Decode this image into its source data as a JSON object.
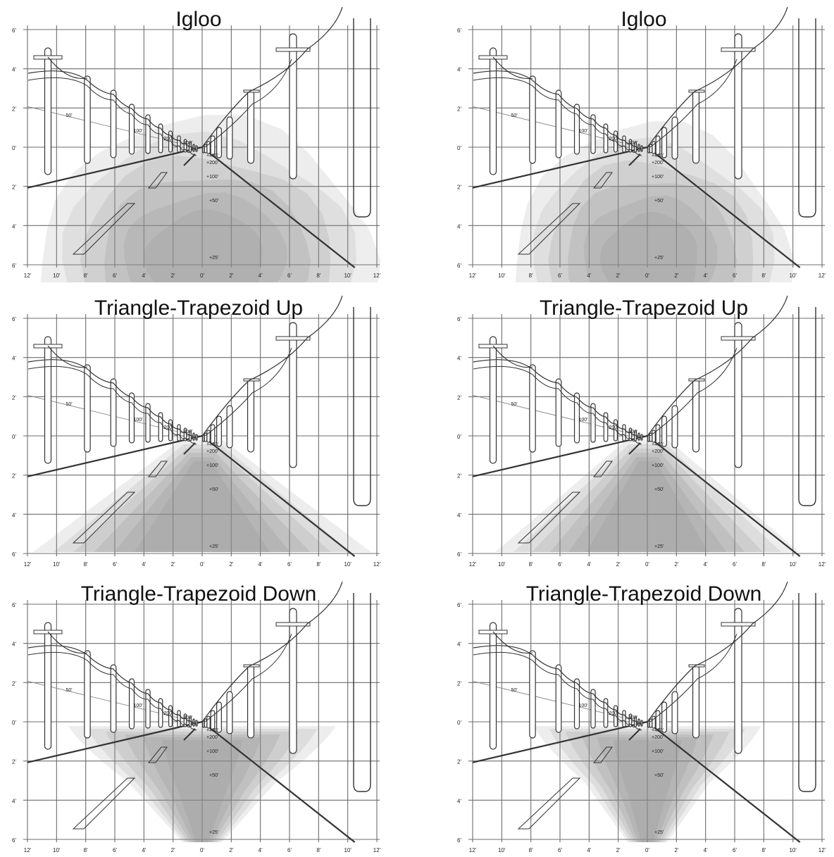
{
  "grid": {
    "y_labels": [
      "6'",
      "4'",
      "2'",
      "0'",
      "2'",
      "4'",
      "6'"
    ],
    "x_labels": [
      "12'",
      "10'",
      "8'",
      "6'",
      "4'",
      "2'",
      "0'",
      "2'",
      "4'",
      "6'",
      "8'",
      "10'",
      "12'"
    ]
  },
  "scene": {
    "left_distances": [
      "50'",
      "100'",
      "200'",
      "300'"
    ],
    "road_distances": [
      "400'",
      "200'",
      "100'",
      "50'",
      "25'"
    ]
  },
  "colors": {
    "grid": "#6d6d6d",
    "ink": "#333333",
    "shade": "#8a8a8a"
  },
  "panels": [
    {
      "id": "igloo-1",
      "title": "Igloo",
      "shape": "igloo",
      "spread": 1.0
    },
    {
      "id": "igloo-2",
      "title": "Igloo",
      "shape": "igloo",
      "spread": 0.82
    },
    {
      "id": "tt-up-1",
      "title": "Triangle-Trapezoid Up",
      "shape": "up",
      "spread": 1.0
    },
    {
      "id": "tt-up-2",
      "title": "Triangle-Trapezoid Up",
      "shape": "up",
      "spread": 0.9
    },
    {
      "id": "tt-down-1",
      "title": "Triangle-Trapezoid Down",
      "shape": "down",
      "spread": 1.0
    },
    {
      "id": "tt-down-2",
      "title": "Triangle-Trapezoid Down",
      "shape": "down",
      "spread": 0.85
    }
  ]
}
